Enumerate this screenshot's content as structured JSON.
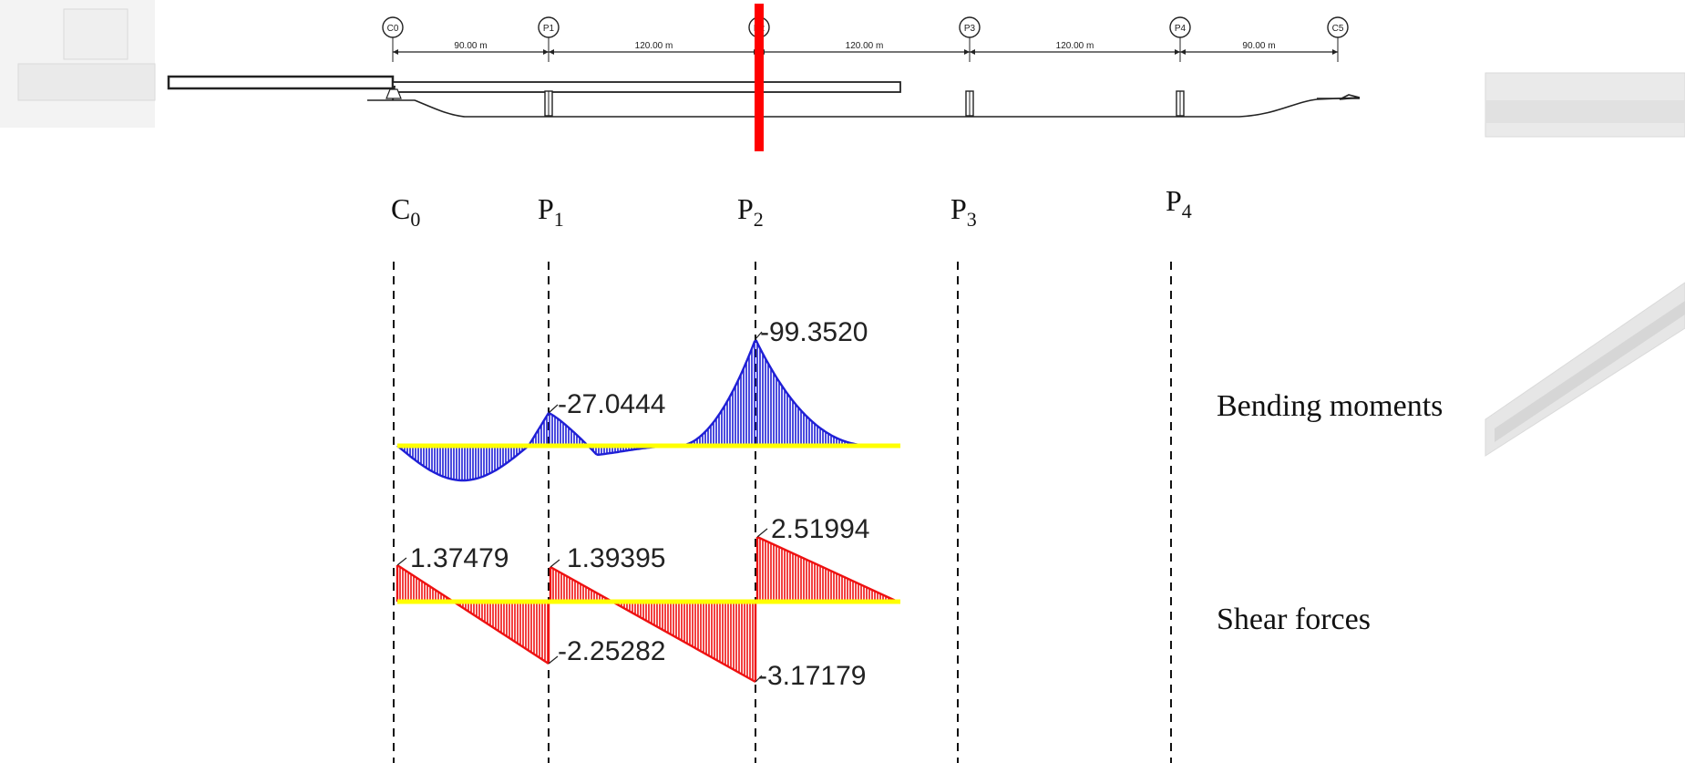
{
  "elevation": {
    "supports": [
      "C0",
      "P1",
      "P2",
      "P3",
      "P4",
      "C5"
    ],
    "spans": [
      "90.00 m",
      "120.00 m",
      "120.00 m",
      "120.00 m",
      "90.00 m"
    ]
  },
  "pier_labels": [
    {
      "base": "C",
      "sub": "0"
    },
    {
      "base": "P",
      "sub": "1"
    },
    {
      "base": "P",
      "sub": "2"
    },
    {
      "base": "P",
      "sub": "3"
    },
    {
      "base": "P",
      "sub": "4"
    }
  ],
  "bending_moments": {
    "title": "Bending moments",
    "color": "#1f1fd6",
    "labels": {
      "p1_peak": "-27.0444",
      "p2_peak": "-99.3520"
    }
  },
  "shear_forces": {
    "title": "Shear forces",
    "color": "#ee1111",
    "labels": {
      "c0_right": "1.37479",
      "p1_right": "1.39395",
      "p1_left": "-2.25282",
      "p2_right": "2.51994",
      "p2_left": "-3.17179"
    }
  },
  "colors": {
    "cut_marker": "#ff0000",
    "baseline": "#ffff00",
    "ink": "#222222",
    "ghost": "#dcdcdc"
  }
}
